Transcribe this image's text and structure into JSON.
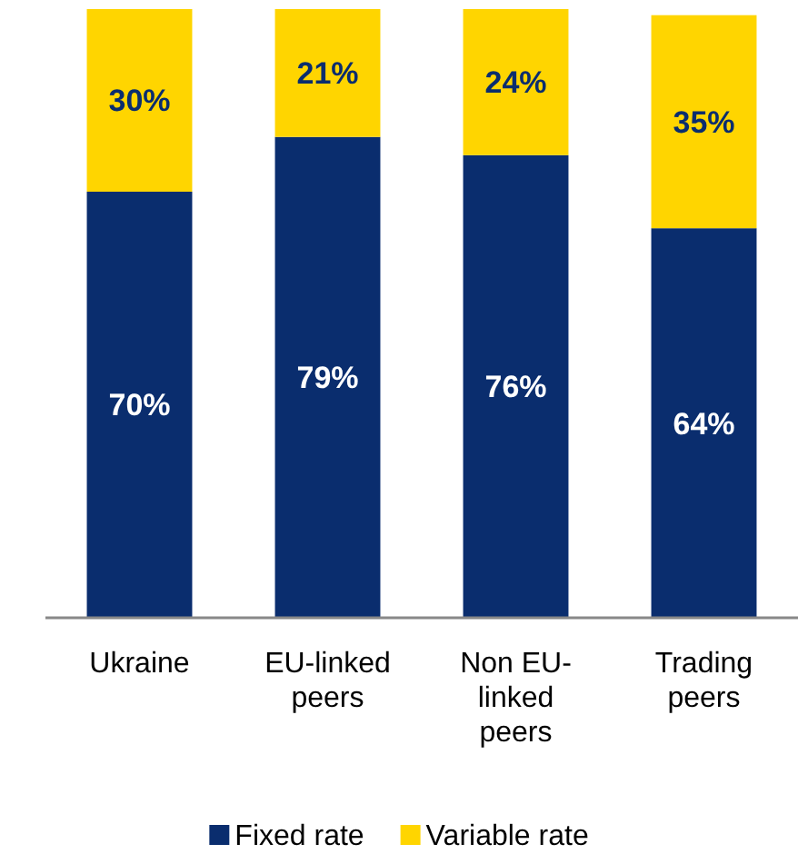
{
  "chart_data": {
    "type": "bar",
    "stacked": true,
    "categories": [
      "Ukraine",
      "EU-linked peers",
      "Non EU-linked peers",
      "Trading peers"
    ],
    "series": [
      {
        "name": "Fixed rate",
        "color": "#0a2d6e",
        "values": [
          70,
          79,
          76,
          64
        ],
        "value_labels": [
          "70%",
          "79%",
          "76%",
          "64%"
        ]
      },
      {
        "name": "Variable rate",
        "color": "#ffd500",
        "values": [
          30,
          21,
          24,
          35
        ],
        "value_labels": [
          "30%",
          "21%",
          "24%",
          "35%"
        ]
      }
    ],
    "tick_labels": "x",
    "legend": "bottom"
  }
}
